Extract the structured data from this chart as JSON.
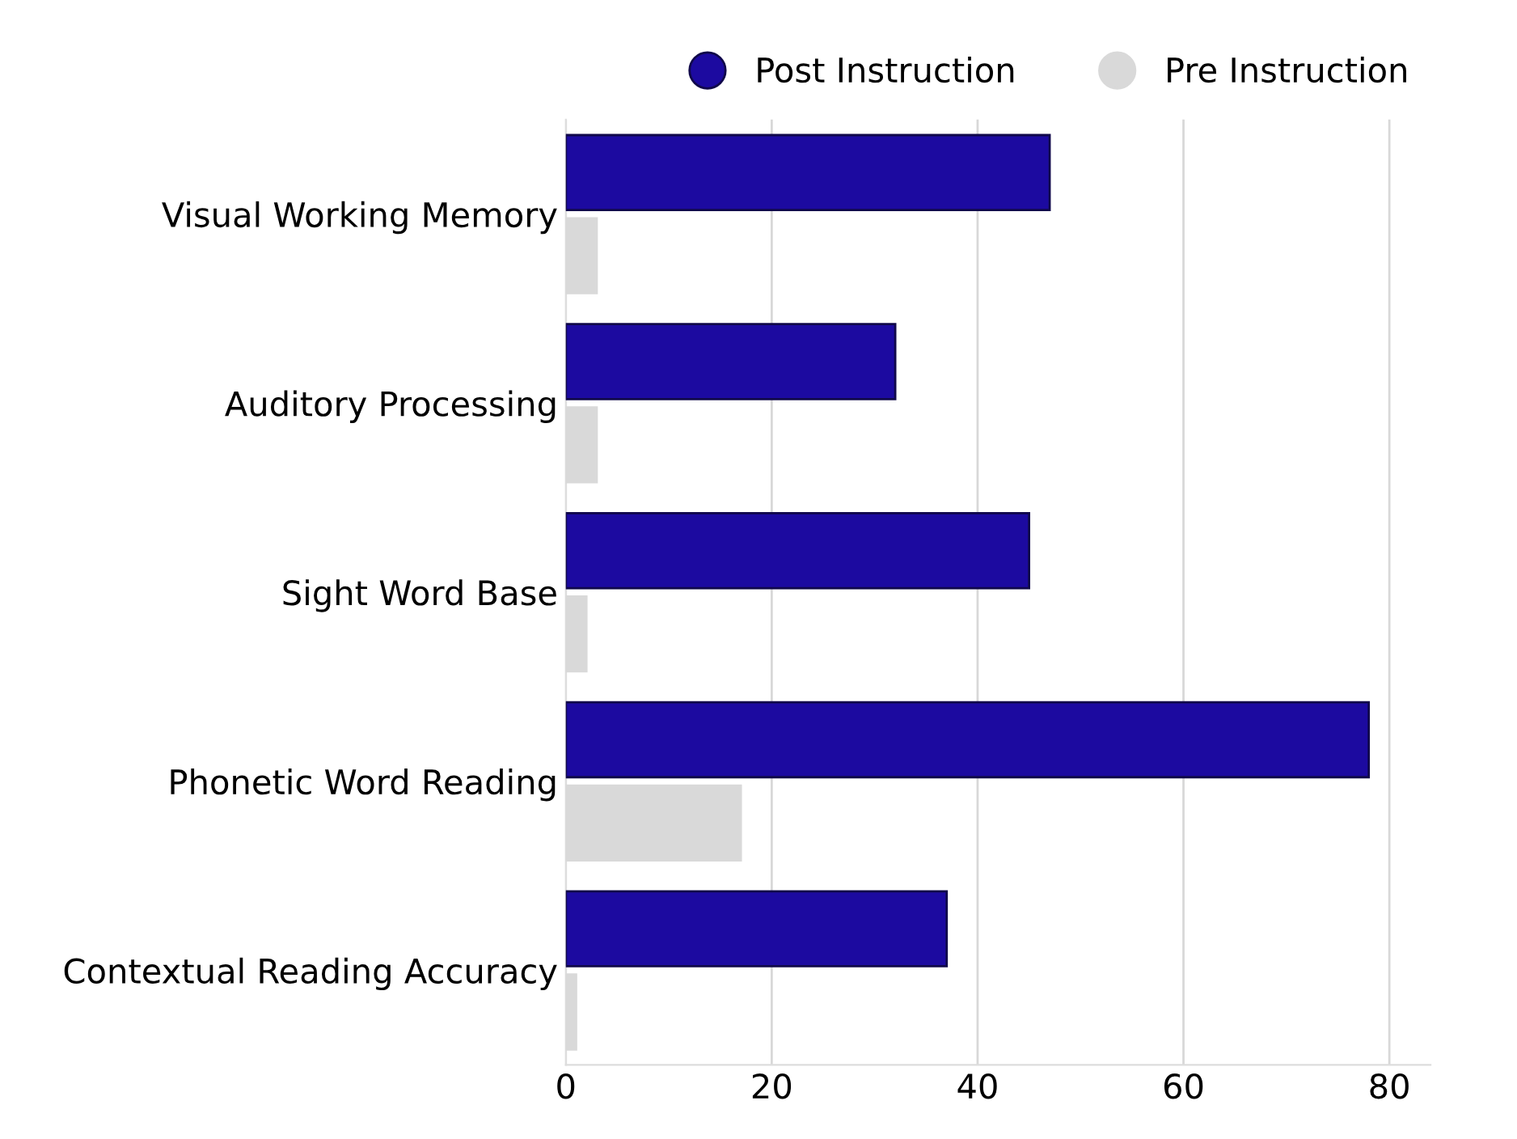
{
  "chart_data": {
    "type": "bar",
    "orientation": "horizontal",
    "categories": [
      "Visual Working Memory",
      "Auditory Processing",
      "Sight Word Base",
      "Phonetic Word Reading",
      "Contextual Reading Accuracy"
    ],
    "series": [
      {
        "name": "Post Instruction",
        "color": "#1c0aa0",
        "values": [
          47,
          32,
          45,
          78,
          37
        ]
      },
      {
        "name": "Pre Instruction",
        "color": "#d9d9d9",
        "values": [
          3,
          3,
          2,
          17,
          1
        ]
      }
    ],
    "xlim": [
      0,
      84
    ],
    "xticks": [
      0,
      20,
      40,
      60,
      80
    ],
    "grid": "x",
    "legend": "top"
  }
}
